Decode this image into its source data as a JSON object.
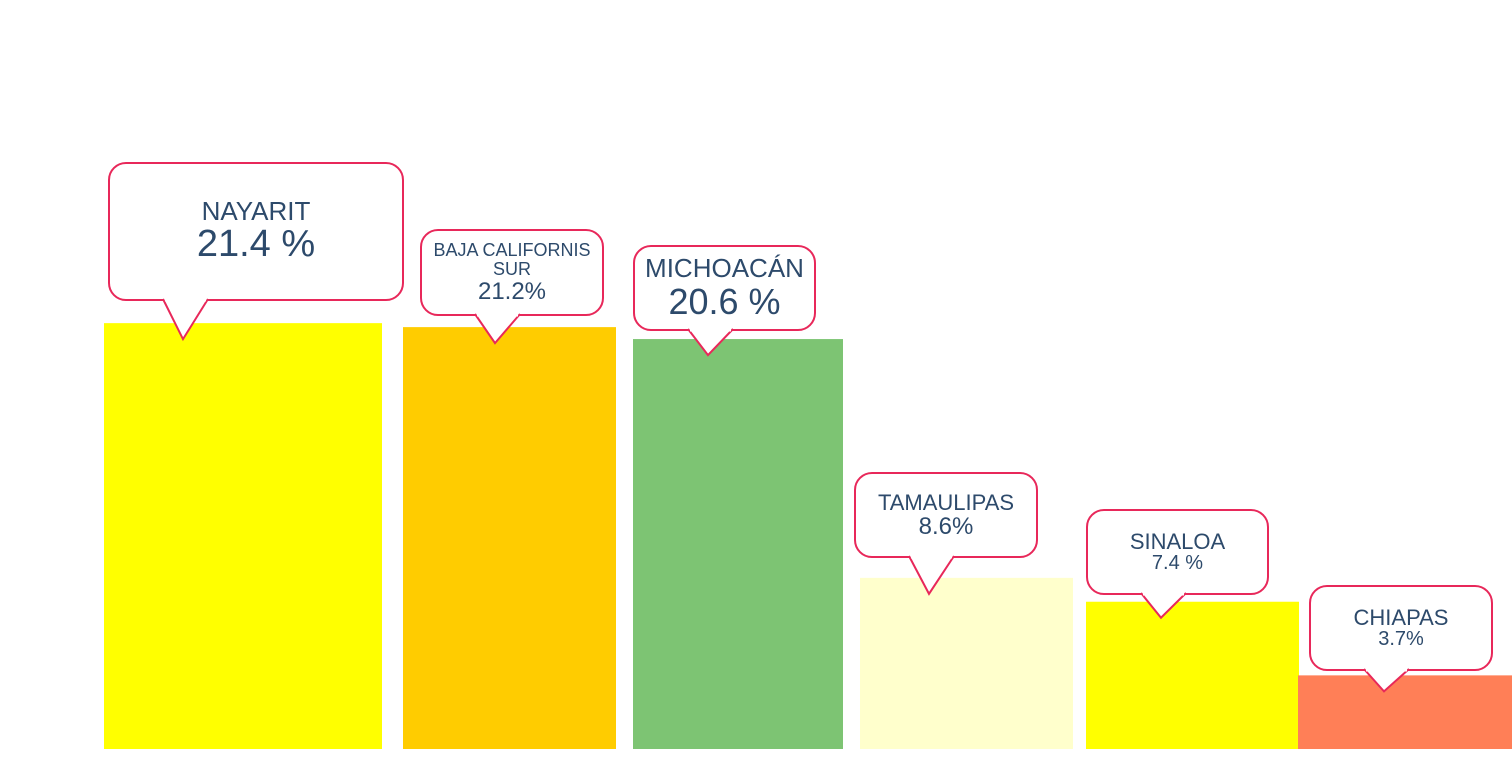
{
  "chart_data": {
    "type": "bar",
    "categories": [
      "NAYARIT",
      "BAJA CALIFORNIS SUR",
      "MICHOACÁN",
      "TAMAULIPAS",
      "SINALOA",
      "CHIAPAS"
    ],
    "values": [
      21.4,
      21.2,
      20.6,
      8.6,
      7.4,
      3.7
    ],
    "value_labels": [
      "21.4 %",
      "21.2%",
      "20.6 %",
      "8.6%",
      "7.4 %",
      "3.7%"
    ],
    "colors": [
      "#ffff00",
      "#ffcc00",
      "#7dc473",
      "#ffffcc",
      "#ffff00",
      "#ff7f57"
    ]
  }
}
